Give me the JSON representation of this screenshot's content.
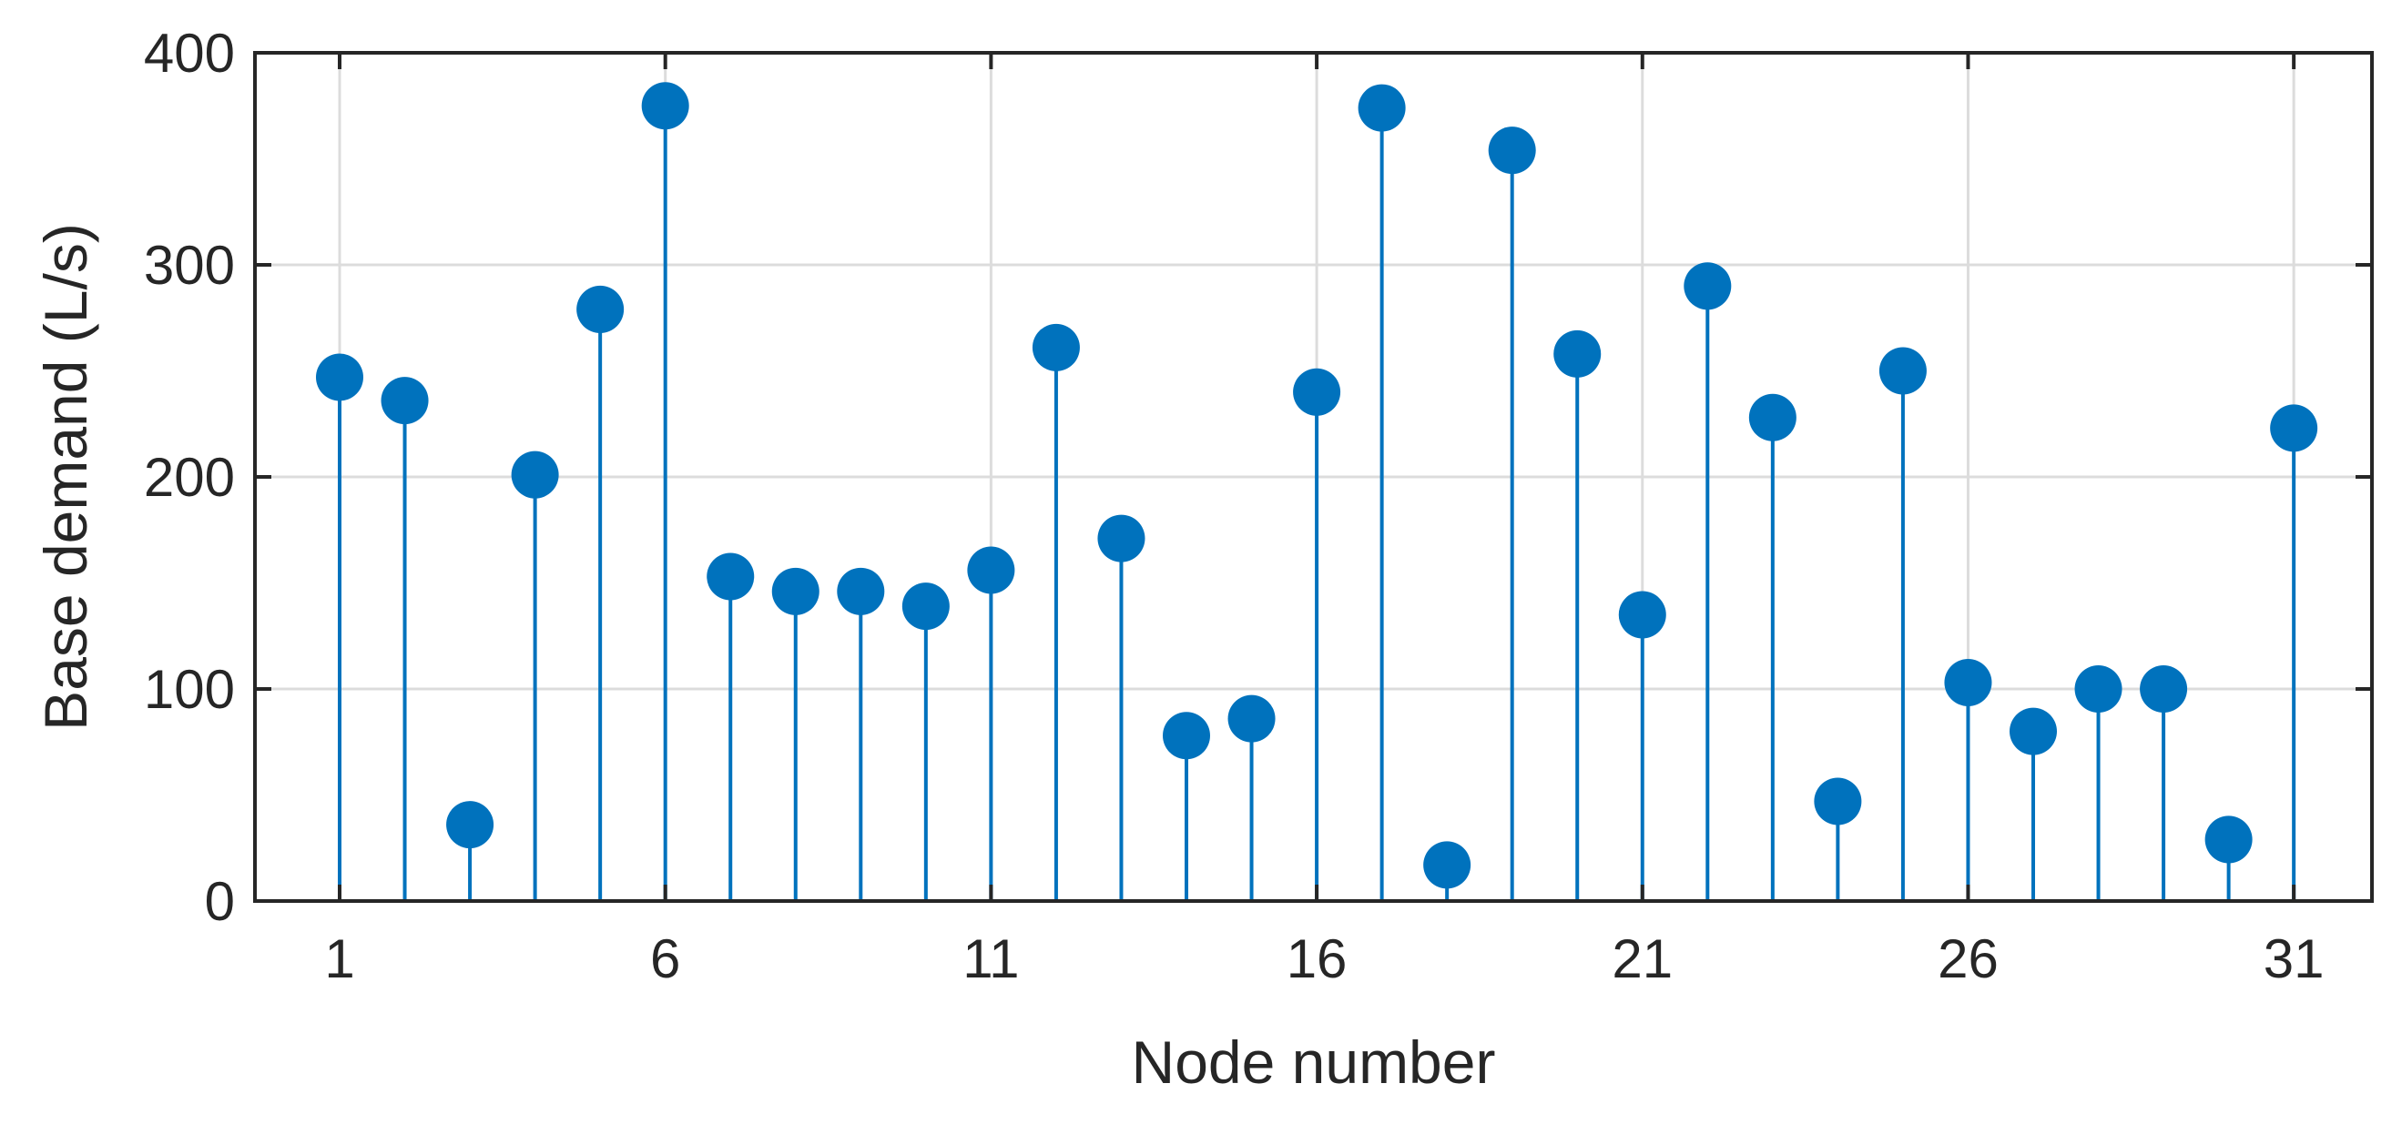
{
  "chart_data": {
    "type": "stem",
    "xlabel": "Node number",
    "ylabel": "Base demand (L/s)",
    "xlim": [
      -0.3,
      32.2
    ],
    "ylim": [
      0,
      400
    ],
    "xticks": [
      1,
      6,
      11,
      16,
      21,
      26,
      31
    ],
    "yticks": [
      0,
      100,
      200,
      300,
      400
    ],
    "grid": true,
    "color": "#0072BD",
    "x": [
      1,
      2,
      3,
      4,
      5,
      6,
      7,
      8,
      9,
      10,
      11,
      12,
      13,
      14,
      15,
      16,
      17,
      18,
      19,
      20,
      21,
      22,
      23,
      24,
      25,
      26,
      27,
      28,
      29,
      30,
      31
    ],
    "values": [
      247,
      236,
      36,
      201,
      279,
      375,
      153,
      146,
      146,
      139,
      156,
      261,
      171,
      78,
      86,
      240,
      374,
      17,
      354,
      258,
      135,
      290,
      228,
      47,
      250,
      103,
      80,
      100,
      100,
      29,
      223
    ]
  }
}
